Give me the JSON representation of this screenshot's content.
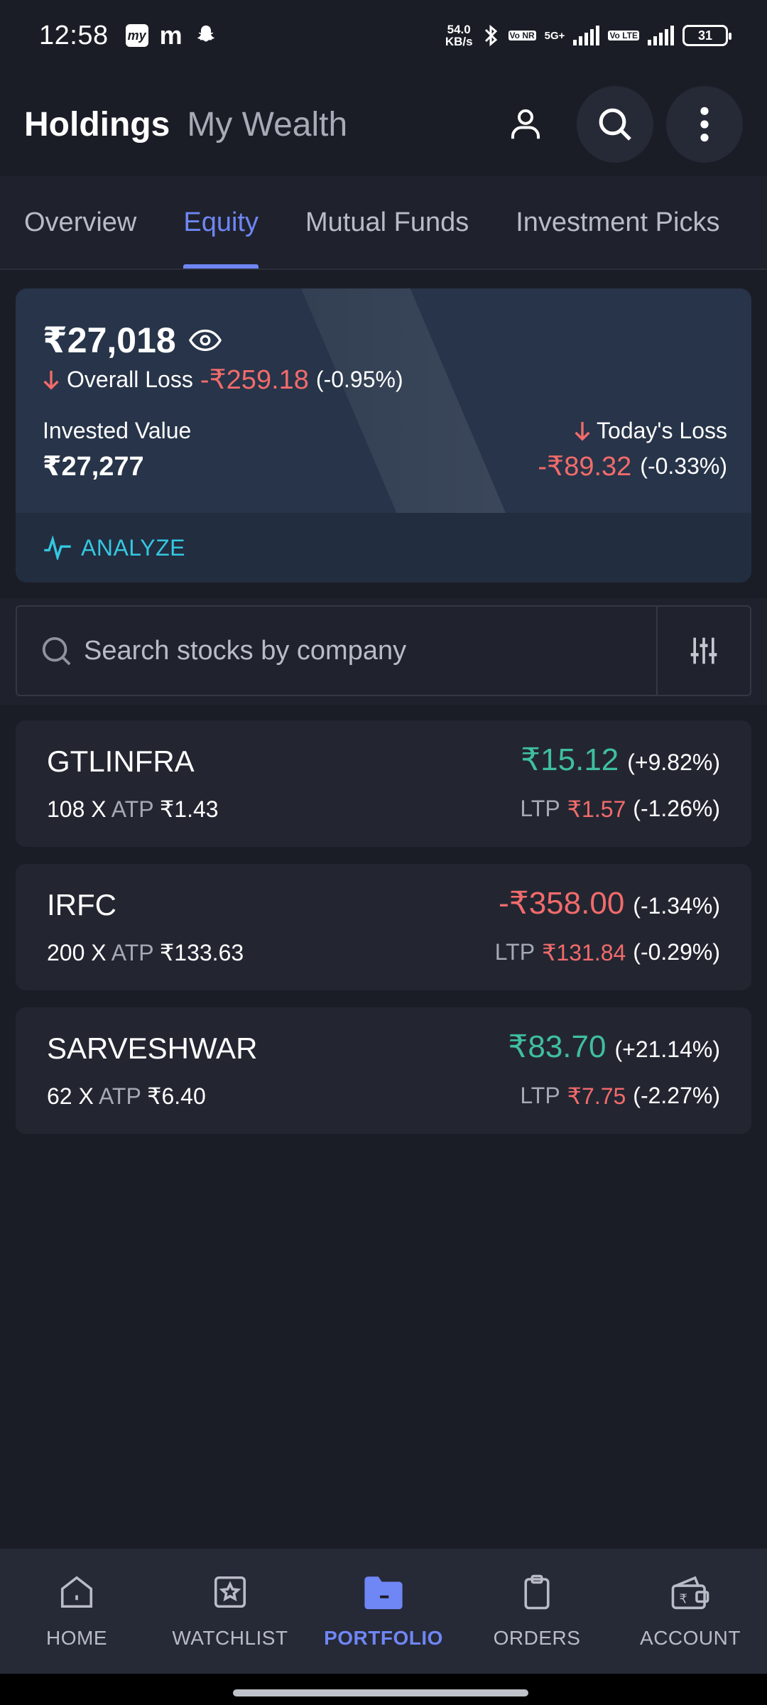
{
  "status_bar": {
    "time": "12:58",
    "net_speed_value": "54.0",
    "net_speed_unit": "KB/s",
    "network_5g": "5G+",
    "volte1": "Vo NR",
    "volte2": "Vo LTE",
    "battery": "31",
    "left_icons": [
      "myjio-icon",
      "m-app-icon",
      "snapchat-icon"
    ]
  },
  "header": {
    "title": "Holdings",
    "subtitle": "My Wealth",
    "actions": [
      "profile-icon",
      "search-icon",
      "more-vertical-icon"
    ]
  },
  "tabs": [
    {
      "label": "Overview",
      "active": false
    },
    {
      "label": "Equity",
      "active": true
    },
    {
      "label": "Mutual Funds",
      "active": false
    },
    {
      "label": "Investment Picks",
      "active": false
    }
  ],
  "summary": {
    "current_value": "₹27,018",
    "overall_label": "Overall Loss",
    "overall_amount": "-₹259.18",
    "overall_pct": "(-0.95%)",
    "invested_label": "Invested Value",
    "invested_value": "₹27,277",
    "today_label": "Today's Loss",
    "today_amount": "-₹89.32",
    "today_pct": "(-0.33%)",
    "analyze_label": "ANALYZE",
    "colors": {
      "loss": "#f26b6b",
      "gain": "#3fbf9e",
      "accent": "#6f86f5",
      "analyze": "#35c7e0"
    }
  },
  "search": {
    "placeholder": "Search stocks by company"
  },
  "holdings": [
    {
      "name": "GTLINFRA",
      "qty": "108 X",
      "atp_label": "ATP",
      "atp": "₹1.43",
      "pnl": "₹15.12",
      "pnl_pct": "(+9.82%)",
      "pnl_positive": true,
      "ltp_label": "LTP",
      "ltp": "₹1.57",
      "ltp_pct": "(-1.26%)"
    },
    {
      "name": "IRFC",
      "qty": "200 X",
      "atp_label": "ATP",
      "atp": "₹133.63",
      "pnl": "-₹358.00",
      "pnl_pct": "(-1.34%)",
      "pnl_positive": false,
      "ltp_label": "LTP",
      "ltp": "₹131.84",
      "ltp_pct": "(-0.29%)"
    },
    {
      "name": "SARVESHWAR",
      "qty": "62 X",
      "atp_label": "ATP",
      "atp": "₹6.40",
      "pnl": "₹83.70",
      "pnl_pct": "(+21.14%)",
      "pnl_positive": true,
      "ltp_label": "LTP",
      "ltp": "₹7.75",
      "ltp_pct": "(-2.27%)"
    }
  ],
  "bottom_nav": [
    {
      "label": "HOME",
      "icon": "home-icon",
      "active": false
    },
    {
      "label": "WATCHLIST",
      "icon": "watchlist-star-icon",
      "active": false
    },
    {
      "label": "PORTFOLIO",
      "icon": "folder-icon",
      "active": true
    },
    {
      "label": "ORDERS",
      "icon": "clipboard-icon",
      "active": false
    },
    {
      "label": "ACCOUNT",
      "icon": "wallet-icon",
      "active": false
    }
  ]
}
